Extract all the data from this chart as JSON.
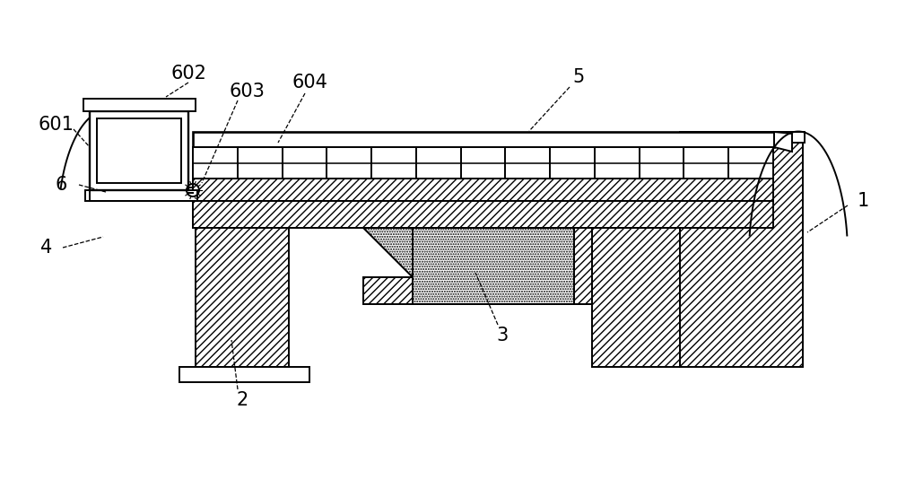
{
  "bg_color": "#ffffff",
  "lc": "#000000",
  "figsize": [
    10.0,
    5.54
  ],
  "dpi": 100,
  "lw": 1.4
}
